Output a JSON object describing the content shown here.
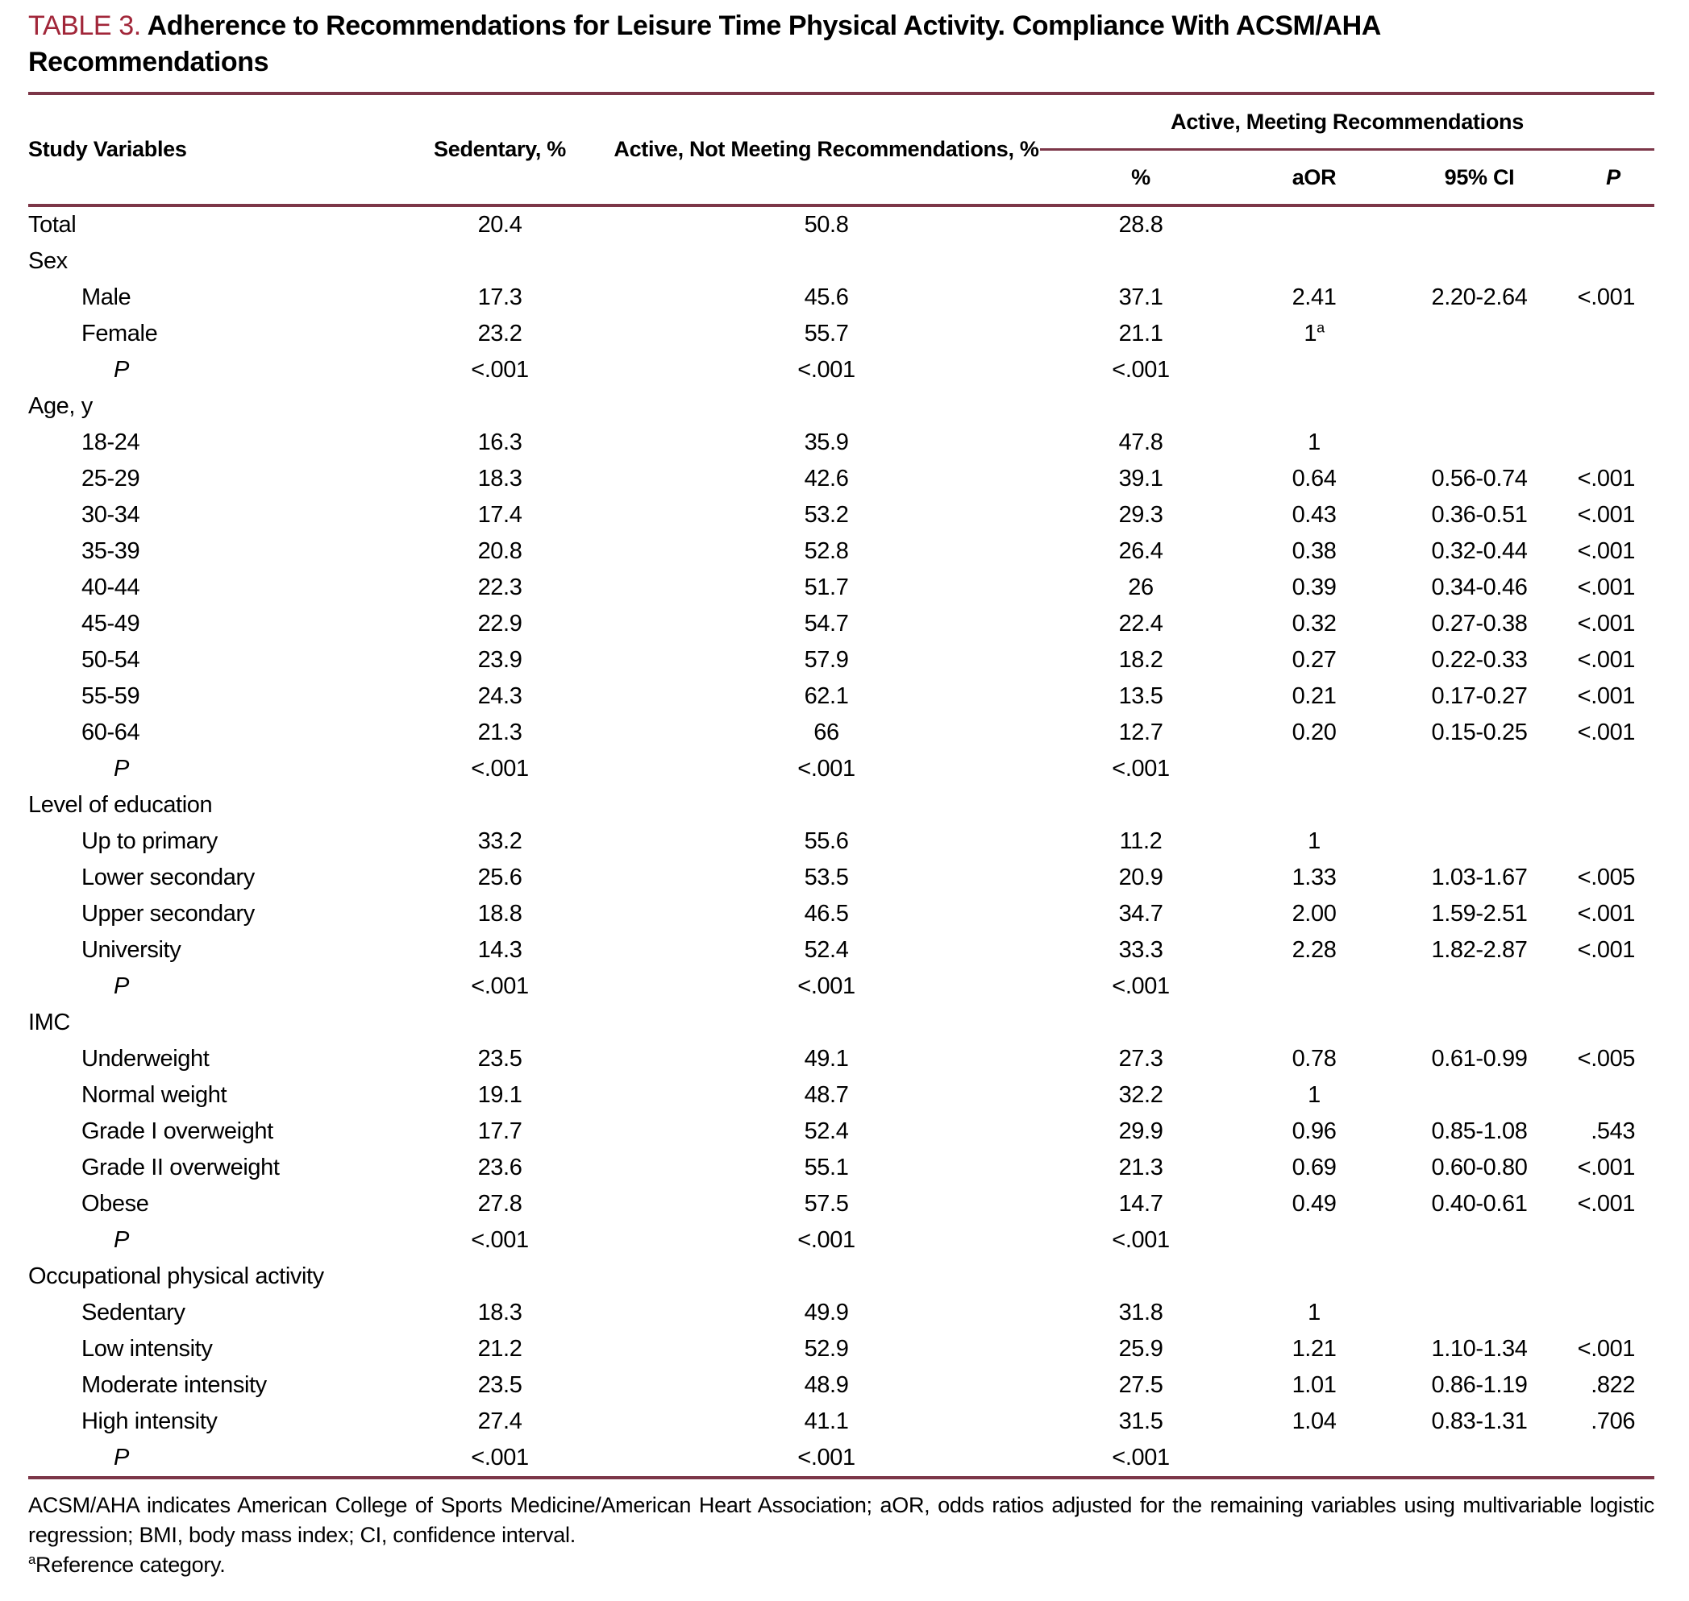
{
  "title": {
    "label": "TABLE 3.",
    "line1": "Adherence to Recommendations for Leisure Time Physical Activity. Compliance With ACSM/AHA",
    "line2": "Recommendations"
  },
  "table": {
    "group_header": "Active, Meeting Recommendations",
    "columns": {
      "study_variables": "Study Variables",
      "sedentary": "Sedentary, %",
      "active_not_meeting": "Active, Not Meeting Recommendations, %",
      "pct": "%",
      "aor": "aOR",
      "ci": "95% CI",
      "p": "P"
    },
    "rows": [
      {
        "label": "Total",
        "indent": 0,
        "cells": [
          "20.4",
          "50.8",
          "28.8",
          "",
          "",
          ""
        ]
      },
      {
        "label": "Sex",
        "indent": 0,
        "cells": [
          "",
          "",
          "",
          "",
          "",
          ""
        ]
      },
      {
        "label": "Male",
        "indent": 1,
        "cells": [
          "17.3",
          "45.6",
          "37.1",
          "2.41",
          "2.20-2.64",
          "<.001"
        ]
      },
      {
        "label": "Female",
        "indent": 1,
        "cells": [
          "23.2",
          "55.7",
          "21.1",
          "1^a",
          "",
          ""
        ]
      },
      {
        "label": "P",
        "indent": 2,
        "cells": [
          "<.001",
          "<.001",
          "<.001",
          "",
          "",
          ""
        ]
      },
      {
        "label": "Age, y",
        "indent": 0,
        "cells": [
          "",
          "",
          "",
          "",
          "",
          ""
        ]
      },
      {
        "label": "18-24",
        "indent": 1,
        "cells": [
          "16.3",
          "35.9",
          "47.8",
          "1",
          "",
          ""
        ]
      },
      {
        "label": "25-29",
        "indent": 1,
        "cells": [
          "18.3",
          "42.6",
          "39.1",
          "0.64",
          "0.56-0.74",
          "<.001"
        ]
      },
      {
        "label": "30-34",
        "indent": 1,
        "cells": [
          "17.4",
          "53.2",
          "29.3",
          "0.43",
          "0.36-0.51",
          "<.001"
        ]
      },
      {
        "label": "35-39",
        "indent": 1,
        "cells": [
          "20.8",
          "52.8",
          "26.4",
          "0.38",
          "0.32-0.44",
          "<.001"
        ]
      },
      {
        "label": "40-44",
        "indent": 1,
        "cells": [
          "22.3",
          "51.7",
          "26",
          "0.39",
          "0.34-0.46",
          "<.001"
        ]
      },
      {
        "label": "45-49",
        "indent": 1,
        "cells": [
          "22.9",
          "54.7",
          "22.4",
          "0.32",
          "0.27-0.38",
          "<.001"
        ]
      },
      {
        "label": "50-54",
        "indent": 1,
        "cells": [
          "23.9",
          "57.9",
          "18.2",
          "0.27",
          "0.22-0.33",
          "<.001"
        ]
      },
      {
        "label": "55-59",
        "indent": 1,
        "cells": [
          "24.3",
          "62.1",
          "13.5",
          "0.21",
          "0.17-0.27",
          "<.001"
        ]
      },
      {
        "label": "60-64",
        "indent": 1,
        "cells": [
          "21.3",
          "66",
          "12.7",
          "0.20",
          "0.15-0.25",
          "<.001"
        ]
      },
      {
        "label": "P",
        "indent": 2,
        "cells": [
          "<.001",
          "<.001",
          "<.001",
          "",
          "",
          ""
        ]
      },
      {
        "label": "Level of education",
        "indent": 0,
        "cells": [
          "",
          "",
          "",
          "",
          "",
          ""
        ]
      },
      {
        "label": "Up to primary",
        "indent": 1,
        "cells": [
          "33.2",
          "55.6",
          "11.2",
          "1",
          "",
          ""
        ]
      },
      {
        "label": "Lower secondary",
        "indent": 1,
        "cells": [
          "25.6",
          "53.5",
          "20.9",
          "1.33",
          "1.03-1.67",
          "<.005"
        ]
      },
      {
        "label": "Upper secondary",
        "indent": 1,
        "cells": [
          "18.8",
          "46.5",
          "34.7",
          "2.00",
          "1.59-2.51",
          "<.001"
        ]
      },
      {
        "label": "University",
        "indent": 1,
        "cells": [
          "14.3",
          "52.4",
          "33.3",
          "2.28",
          "1.82-2.87",
          "<.001"
        ]
      },
      {
        "label": "P",
        "indent": 2,
        "cells": [
          "<.001",
          "<.001",
          "<.001",
          "",
          "",
          ""
        ]
      },
      {
        "label": "IMC",
        "indent": 0,
        "cells": [
          "",
          "",
          "",
          "",
          "",
          ""
        ]
      },
      {
        "label": "Underweight",
        "indent": 1,
        "cells": [
          "23.5",
          "49.1",
          "27.3",
          "0.78",
          "0.61-0.99",
          "<.005"
        ]
      },
      {
        "label": "Normal weight",
        "indent": 1,
        "cells": [
          "19.1",
          "48.7",
          "32.2",
          "1",
          "",
          ""
        ]
      },
      {
        "label": "Grade I overweight",
        "indent": 1,
        "cells": [
          "17.7",
          "52.4",
          "29.9",
          "0.96",
          "0.85-1.08",
          ".543"
        ]
      },
      {
        "label": "Grade II overweight",
        "indent": 1,
        "cells": [
          "23.6",
          "55.1",
          "21.3",
          "0.69",
          "0.60-0.80",
          "<.001"
        ]
      },
      {
        "label": "Obese",
        "indent": 1,
        "cells": [
          "27.8",
          "57.5",
          "14.7",
          "0.49",
          "0.40-0.61",
          "<.001"
        ]
      },
      {
        "label": "P",
        "indent": 2,
        "cells": [
          "<.001",
          "<.001",
          "<.001",
          "",
          "",
          ""
        ]
      },
      {
        "label": "Occupational physical activity",
        "indent": 0,
        "cells": [
          "",
          "",
          "",
          "",
          "",
          ""
        ]
      },
      {
        "label": "Sedentary",
        "indent": 1,
        "cells": [
          "18.3",
          "49.9",
          "31.8",
          "1",
          "",
          ""
        ]
      },
      {
        "label": "Low intensity",
        "indent": 1,
        "cells": [
          "21.2",
          "52.9",
          "25.9",
          "1.21",
          "1.10-1.34",
          "<.001"
        ]
      },
      {
        "label": "Moderate intensity",
        "indent": 1,
        "cells": [
          "23.5",
          "48.9",
          "27.5",
          "1.01",
          "0.86-1.19",
          ".822"
        ]
      },
      {
        "label": "High intensity",
        "indent": 1,
        "cells": [
          "27.4",
          "41.1",
          "31.5",
          "1.04",
          "0.83-1.31",
          ".706"
        ]
      },
      {
        "label": "P",
        "indent": 2,
        "cells": [
          "<.001",
          "<.001",
          "<.001",
          "",
          "",
          ""
        ]
      }
    ]
  },
  "footnote": {
    "abbrev": "ACSM/AHA indicates American College of Sports Medicine/American Heart Association; aOR, odds ratios adjusted for the remaining variables using multivariable logistic regression; BMI, body mass index; CI, confidence interval.",
    "reference": "^aReference category."
  },
  "colors": {
    "rule": "#7c3648",
    "title_label": "#a12639"
  }
}
